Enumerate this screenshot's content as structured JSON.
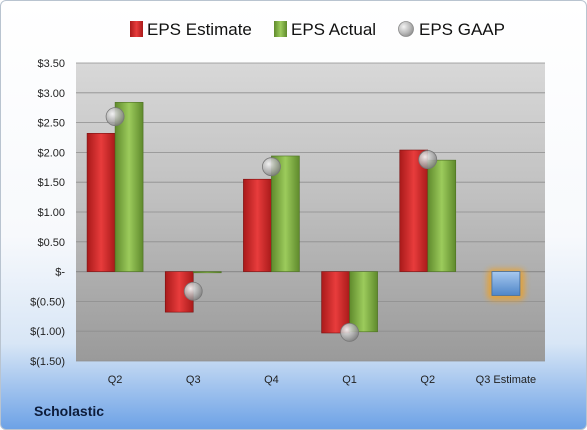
{
  "company": "Scholastic",
  "chart_data": {
    "type": "bar",
    "categories": [
      "Q2",
      "Q3",
      "Q4",
      "Q1",
      "Q2",
      "Q3 Estimate"
    ],
    "series": [
      {
        "name": "EPS Estimate",
        "values": [
          2.32,
          -0.68,
          1.55,
          -1.03,
          2.04,
          null
        ],
        "color": "#d32f2f"
      },
      {
        "name": "EPS Actual",
        "values": [
          2.84,
          -0.02,
          1.94,
          -1.01,
          1.87,
          null
        ],
        "color": "#84b44a"
      },
      {
        "name": "EPS GAAP",
        "values": [
          2.6,
          -0.33,
          1.76,
          -1.02,
          1.88,
          null
        ],
        "color": "#a9a9a9"
      }
    ],
    "next_estimate": {
      "category": "Q3 Estimate",
      "value": -0.4,
      "color": "#6a9fd8"
    },
    "yticks": [
      "$3.50",
      "$3.00",
      "$2.50",
      "$2.00",
      "$1.50",
      "$1.00",
      "$0.50",
      "$-",
      "$(0.50)",
      "$(1.00)",
      "$(1.50)"
    ],
    "ylim": [
      -1.5,
      3.5
    ],
    "grid": true,
    "legend": "top"
  }
}
